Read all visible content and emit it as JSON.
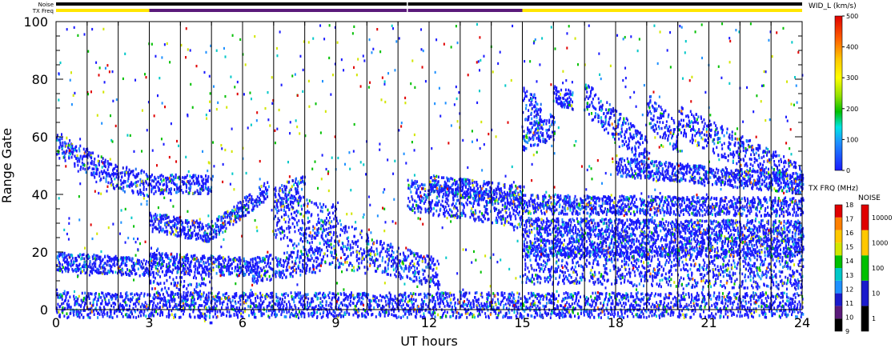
{
  "chart_data": {
    "type": "heatmap",
    "xlabel": "UT hours",
    "ylabel": "Range Gate",
    "xlim": [
      0,
      24
    ],
    "ylim": [
      0,
      100
    ],
    "x_ticks": [
      0,
      3,
      6,
      9,
      12,
      15,
      18,
      21,
      24
    ],
    "y_ticks": [
      0,
      20,
      40,
      60,
      80,
      100
    ],
    "minor_tick_hours": 1,
    "scan_markers_ut": [
      1,
      2,
      3,
      4,
      5,
      6,
      7,
      8,
      9,
      10,
      11,
      12,
      13,
      14,
      15,
      16,
      17,
      18,
      19,
      20,
      21,
      22,
      23
    ],
    "top_bars": {
      "noise_label": "Noise",
      "freq_label": "TX Freq",
      "noise_color": "#000000",
      "freq_segments": [
        {
          "from": 0,
          "to": 3,
          "color": "#ffe600"
        },
        {
          "from": 3,
          "to": 15,
          "color": "#5a1a7a"
        },
        {
          "from": 15,
          "to": 24,
          "color": "#ffe600"
        }
      ]
    },
    "width_scale": {
      "title": "WID_L (km/s)",
      "range": [
        0,
        500
      ],
      "ticks": [
        0,
        100,
        200,
        300,
        400,
        500
      ]
    },
    "freq_scale": {
      "title": "TX FRQ (MHz)",
      "ticks": [
        9,
        10,
        11,
        12,
        13,
        14,
        15,
        16,
        17,
        18
      ],
      "colors": [
        "#000000",
        "#5a1a7a",
        "#1a1acc",
        "#1e90ff",
        "#00c8c8",
        "#00c000",
        "#d2e600",
        "#ffc800",
        "#ff8000",
        "#e00000"
      ]
    },
    "noise_scale": {
      "title": "NOISE",
      "ticks": [
        "1",
        "10",
        "100",
        "1000",
        "10000"
      ],
      "colors": [
        "#000000",
        "#1a1acc",
        "#00c000",
        "#ffc800",
        "#e00000"
      ]
    },
    "echo_bands": [
      {
        "t0": 0.0,
        "t1": 2.0,
        "g0": 58,
        "g1": 46,
        "w": 4
      },
      {
        "t0": 2.0,
        "t1": 3.0,
        "g0": 46,
        "g1": 44,
        "w": 4
      },
      {
        "t0": 3.0,
        "t1": 5.0,
        "g0": 44,
        "g1": 44,
        "w": 3
      },
      {
        "t0": 3.0,
        "t1": 5.0,
        "g0": 31,
        "g1": 27,
        "w": 3
      },
      {
        "t0": 5.0,
        "t1": 6.8,
        "g0": 28,
        "g1": 42,
        "w": 3
      },
      {
        "t0": 7.0,
        "t1": 8.0,
        "g0": 38,
        "g1": 44,
        "w": 4
      },
      {
        "t0": 7.0,
        "t1": 9.0,
        "g0": 33,
        "g1": 28,
        "w": 8
      },
      {
        "t0": 8.5,
        "t1": 10.0,
        "g0": 24,
        "g1": 20,
        "w": 7
      },
      {
        "t0": 10.0,
        "t1": 12.3,
        "g0": 20,
        "g1": 13,
        "w": 5
      },
      {
        "t0": 6.3,
        "t1": 8.5,
        "g0": 14,
        "g1": 18,
        "w": 4
      },
      {
        "t0": 3.0,
        "t1": 5.0,
        "g0": 14,
        "g1": 4,
        "w": 8
      },
      {
        "t0": 3.0,
        "t1": 6.5,
        "g0": 17,
        "g1": 15,
        "w": 3
      },
      {
        "t0": 11.3,
        "t1": 15.0,
        "g0": 40,
        "g1": 34,
        "w": 5
      },
      {
        "t0": 12.0,
        "t1": 15.0,
        "g0": 44,
        "g1": 40,
        "w": 3
      },
      {
        "t0": 15.0,
        "t1": 15.6,
        "g0": 72,
        "g1": 68,
        "w": 5
      },
      {
        "t0": 15.0,
        "t1": 16.0,
        "g0": 60,
        "g1": 64,
        "w": 4
      },
      {
        "t0": 16.0,
        "t1": 16.6,
        "g0": 75,
        "g1": 73,
        "w": 3
      },
      {
        "t0": 17.0,
        "t1": 19.0,
        "g0": 74,
        "g1": 55,
        "w": 5
      },
      {
        "t0": 19.0,
        "t1": 20.0,
        "g0": 70,
        "g1": 60,
        "w": 5
      },
      {
        "t0": 20.0,
        "t1": 24.0,
        "g0": 66,
        "g1": 45,
        "w": 5
      },
      {
        "t0": 18.0,
        "t1": 24.0,
        "g0": 50,
        "g1": 44,
        "w": 3
      },
      {
        "t0": 15.0,
        "t1": 24.0,
        "g0": 37,
        "g1": 36,
        "w": 3
      },
      {
        "t0": 15.0,
        "t1": 24.0,
        "g0": 29,
        "g1": 28,
        "w": 3
      },
      {
        "t0": 15.0,
        "t1": 24.0,
        "g0": 22,
        "g1": 22,
        "w": 3
      },
      {
        "t0": 15.0,
        "t1": 24.0,
        "g0": 16,
        "g1": 14,
        "w": 6
      },
      {
        "t0": 0.0,
        "t1": 24.0,
        "g0": 2,
        "g1": 2,
        "w": 4
      },
      {
        "t0": 0.0,
        "t1": 3.0,
        "g0": 17,
        "g1": 15,
        "w": 3
      }
    ]
  }
}
